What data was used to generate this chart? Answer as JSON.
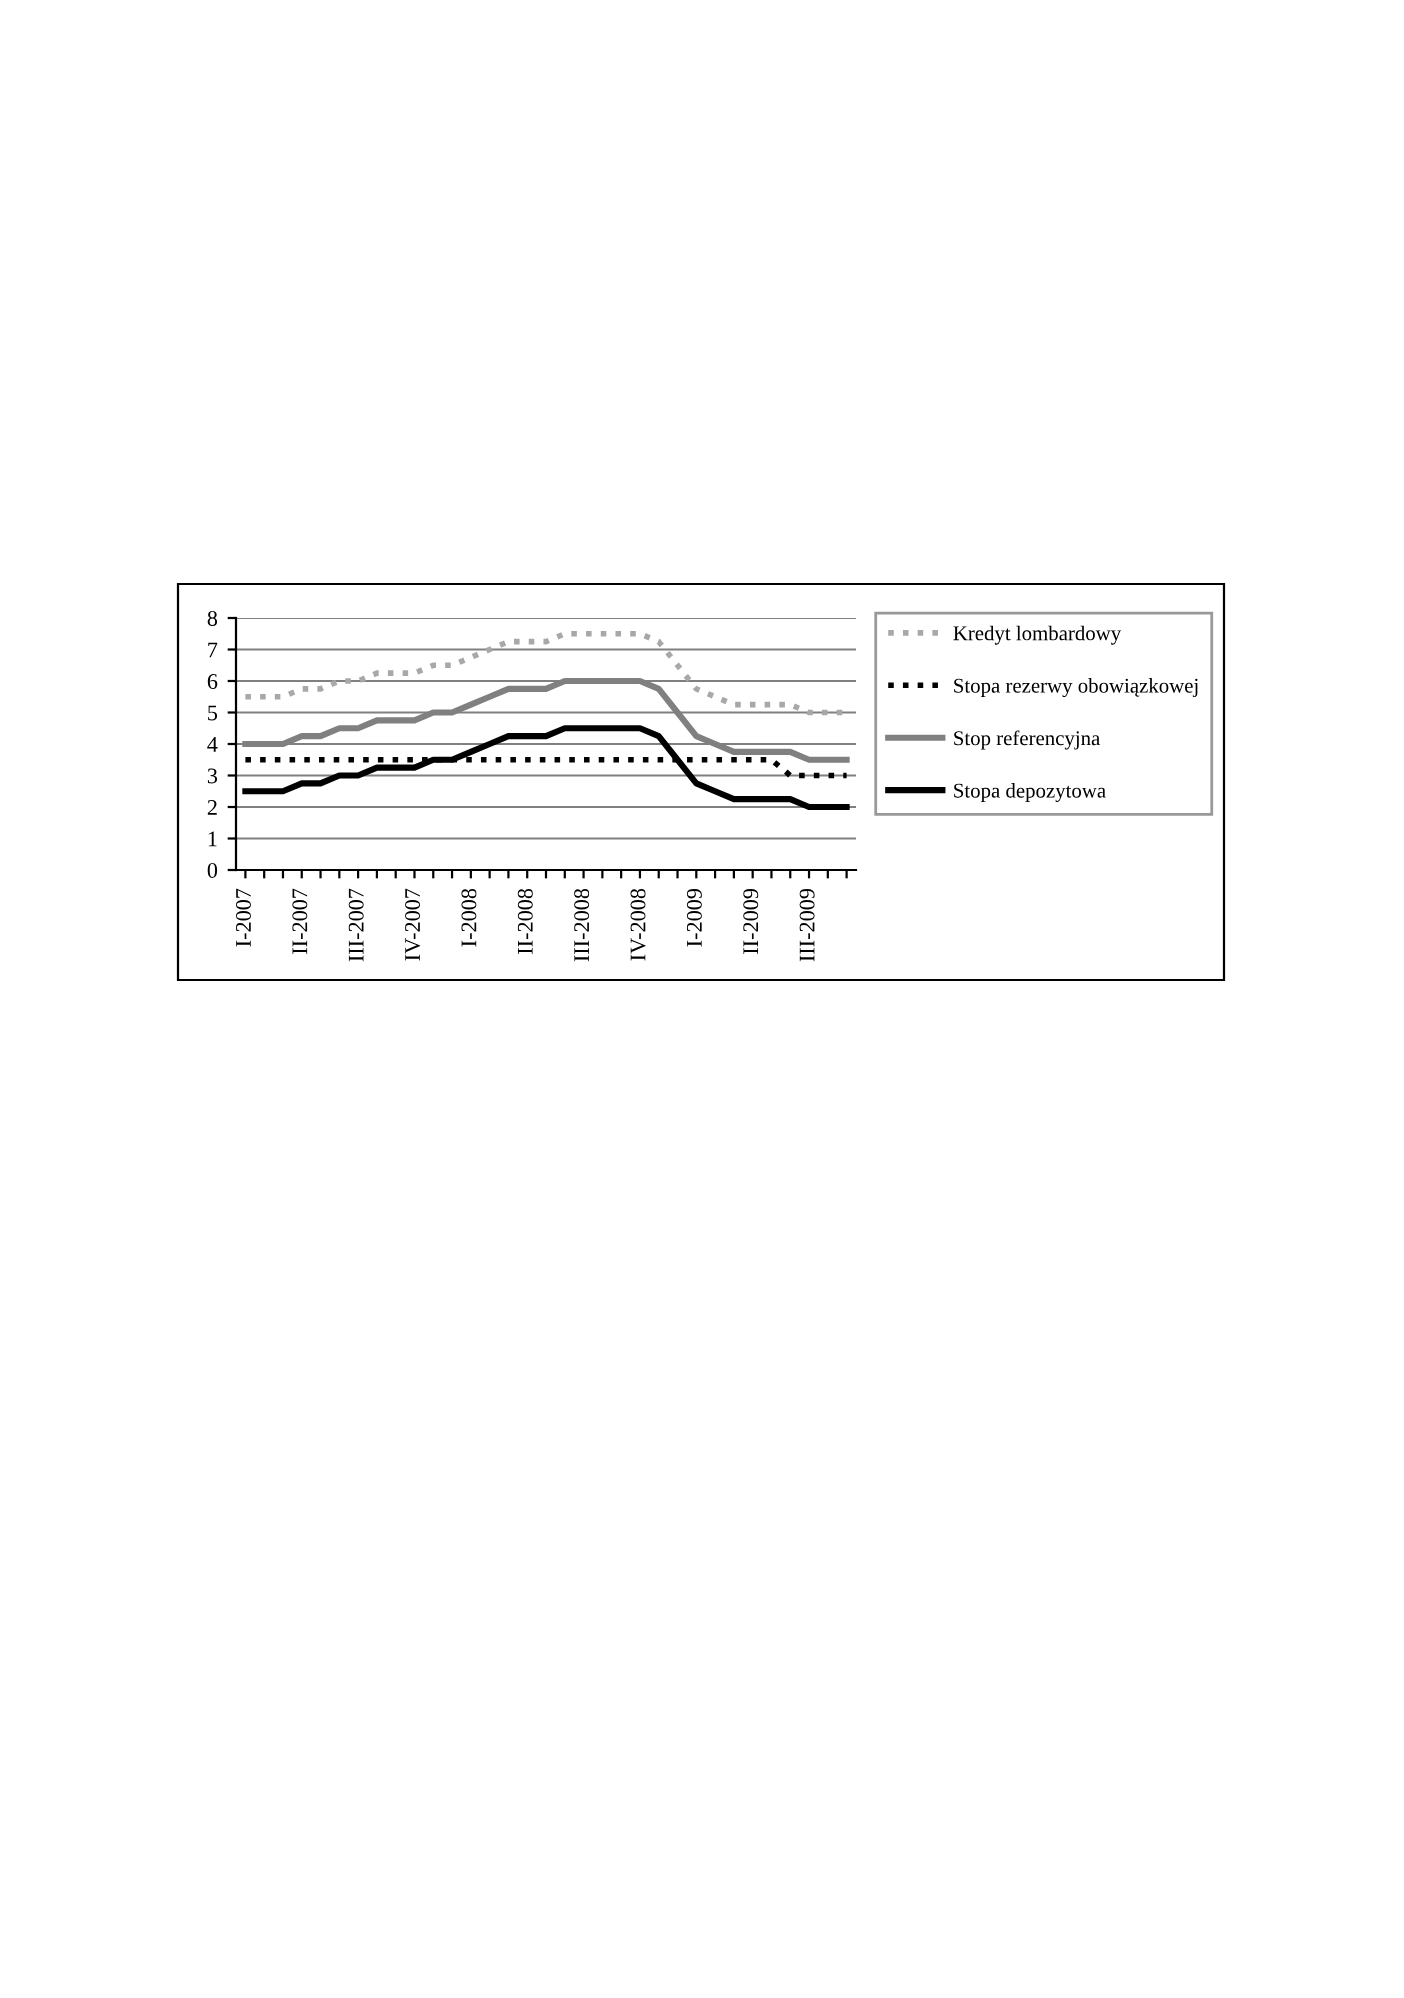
{
  "chart_data": {
    "type": "line",
    "categories": [
      "I-2007",
      null,
      null,
      "II-2007",
      null,
      null,
      "III-2007",
      null,
      null,
      "IV-2007",
      null,
      null,
      "I-2008",
      null,
      null,
      "II-2008",
      null,
      null,
      "III-2008",
      null,
      null,
      "IV-2008",
      null,
      null,
      "I-2009",
      null,
      null,
      "II-2009",
      null,
      null,
      "III-2009",
      null,
      null
    ],
    "series": [
      {
        "name": "Kredyt lombardowy",
        "color": "#a8a8a8",
        "line_style": "dotted",
        "values": [
          5.5,
          5.5,
          5.5,
          5.75,
          5.75,
          6,
          6,
          6.25,
          6.25,
          6.25,
          6.5,
          6.5,
          6.75,
          7,
          7.25,
          7.25,
          7.25,
          7.5,
          7.5,
          7.5,
          7.5,
          7.5,
          7.25,
          6.5,
          5.75,
          5.5,
          5.25,
          5.25,
          5.25,
          5.25,
          5,
          5,
          5
        ]
      },
      {
        "name": "Stopa rezerwy obowiązkowej",
        "color": "#000000",
        "line_style": "dotted",
        "values": [
          3.5,
          3.5,
          3.5,
          3.5,
          3.5,
          3.5,
          3.5,
          3.5,
          3.5,
          3.5,
          3.5,
          3.5,
          3.5,
          3.5,
          3.5,
          3.5,
          3.5,
          3.5,
          3.5,
          3.5,
          3.5,
          3.5,
          3.5,
          3.5,
          3.5,
          3.5,
          3.5,
          3.5,
          3.5,
          3,
          3,
          3,
          3
        ]
      },
      {
        "name": "Stop referencyjna",
        "color": "#808080",
        "line_style": "solid",
        "values": [
          4,
          4,
          4,
          4.25,
          4.25,
          4.5,
          4.5,
          4.75,
          4.75,
          4.75,
          5,
          5,
          5.25,
          5.5,
          5.75,
          5.75,
          5.75,
          6,
          6,
          6,
          6,
          6,
          5.75,
          5,
          4.25,
          4,
          3.75,
          3.75,
          3.75,
          3.75,
          3.5,
          3.5,
          3.5
        ]
      },
      {
        "name": "Stopa depozytowa",
        "color": "#000000",
        "line_style": "solid",
        "values": [
          2.5,
          2.5,
          2.5,
          2.75,
          2.75,
          3,
          3,
          3.25,
          3.25,
          3.25,
          3.5,
          3.5,
          3.75,
          4,
          4.25,
          4.25,
          4.25,
          4.5,
          4.5,
          4.5,
          4.5,
          4.5,
          4.25,
          3.5,
          2.75,
          2.5,
          2.25,
          2.25,
          2.25,
          2.25,
          2,
          2,
          2
        ]
      }
    ],
    "ylim": [
      0,
      8
    ],
    "yticks": [
      0,
      1,
      2,
      3,
      4,
      5,
      6,
      7,
      8
    ],
    "grid": "y",
    "legend": "right",
    "marker": "none"
  }
}
